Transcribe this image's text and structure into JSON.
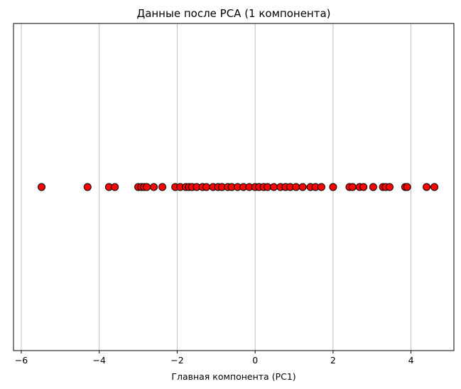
{
  "chart_data": {
    "type": "scatter",
    "title": "Данные после PCA (1 компонента)",
    "xlabel": "Главная компонента (PC1)",
    "ylabel": "",
    "xlim": [
      -6.2,
      5.1
    ],
    "ylim": [
      -1,
      1
    ],
    "xticks": [
      -6,
      -4,
      -2,
      0,
      2,
      4
    ],
    "xtick_labels": [
      "−6",
      "−4",
      "−2",
      "0",
      "2",
      "4"
    ],
    "grid": "x",
    "marker_color": "#ff0000",
    "marker_edge_color": "#000000",
    "x": [
      -5.48,
      -4.3,
      -3.75,
      -3.6,
      -3.0,
      -2.92,
      -2.85,
      -2.78,
      -2.6,
      -2.38,
      -2.05,
      -1.92,
      -1.78,
      -1.7,
      -1.62,
      -1.5,
      -1.35,
      -1.25,
      -1.08,
      -0.95,
      -0.85,
      -0.7,
      -0.6,
      -0.45,
      -0.3,
      -0.15,
      0.0,
      0.1,
      0.22,
      0.32,
      0.48,
      0.65,
      0.78,
      0.9,
      1.05,
      1.22,
      1.42,
      1.55,
      1.7,
      2.0,
      2.42,
      2.5,
      2.68,
      2.78,
      3.03,
      3.28,
      3.35,
      3.45,
      3.85,
      3.9,
      4.4,
      4.6
    ],
    "y": [
      0,
      0,
      0,
      0,
      0,
      0,
      0,
      0,
      0,
      0,
      0,
      0,
      0,
      0,
      0,
      0,
      0,
      0,
      0,
      0,
      0,
      0,
      0,
      0,
      0,
      0,
      0,
      0,
      0,
      0,
      0,
      0,
      0,
      0,
      0,
      0,
      0,
      0,
      0,
      0,
      0,
      0,
      0,
      0,
      0,
      0,
      0,
      0,
      0,
      0,
      0,
      0
    ]
  }
}
